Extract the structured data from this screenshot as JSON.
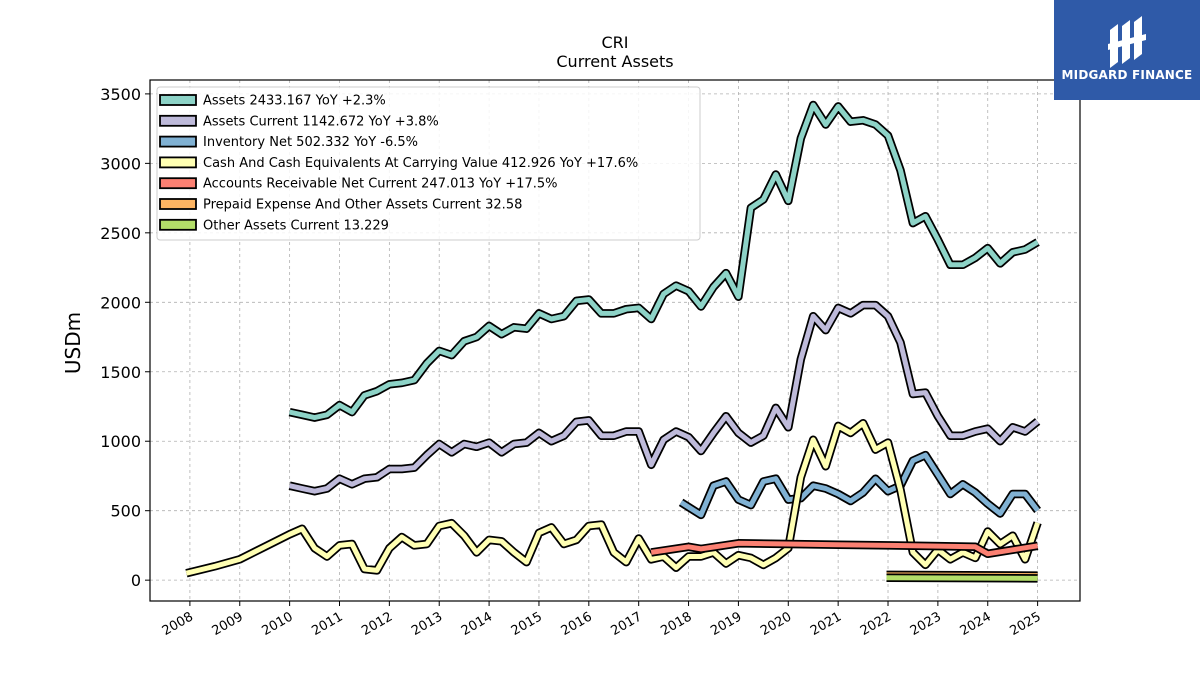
{
  "brand": {
    "name": "MIDGARD FINANCE",
    "color": "#2f5aa8",
    "icon": "midgard-logo-icon"
  },
  "chart_data": {
    "type": "line",
    "title": "CRI",
    "subtitle": "Current  Assets",
    "ylabel": "USDm",
    "xlabel": "",
    "ylim": [
      -150,
      3600
    ],
    "xlim": [
      2007.2,
      2025.85
    ],
    "yticks": [
      0,
      500,
      1000,
      1500,
      2000,
      2500,
      3000,
      3500
    ],
    "xticks": [
      "2008",
      "2009",
      "2010",
      "2011",
      "2012",
      "2013",
      "2014",
      "2015",
      "2016",
      "2017",
      "2018",
      "2019",
      "2020",
      "2021",
      "2022",
      "2023",
      "2024",
      "2025"
    ],
    "grid": true,
    "legend_position": "top-left",
    "series": [
      {
        "name": "Assets  2433.167 YoY +2.3%",
        "color": "#8dd3c7",
        "x": [
          2010.0,
          2010.25,
          2010.5,
          2010.75,
          2011.0,
          2011.25,
          2011.5,
          2011.75,
          2012.0,
          2012.25,
          2012.5,
          2012.75,
          2013.0,
          2013.25,
          2013.5,
          2013.75,
          2014.0,
          2014.25,
          2014.5,
          2014.75,
          2015.0,
          2015.25,
          2015.5,
          2015.75,
          2016.0,
          2016.25,
          2016.5,
          2016.75,
          2017.0,
          2017.25,
          2017.5,
          2017.75,
          2018.0,
          2018.25,
          2018.5,
          2018.75,
          2019.0,
          2019.25,
          2019.5,
          2019.75,
          2020.0,
          2020.25,
          2020.5,
          2020.75,
          2021.0,
          2021.25,
          2021.5,
          2021.75,
          2022.0,
          2022.25,
          2022.5,
          2022.75,
          2023.0,
          2023.25,
          2023.5,
          2023.75,
          2024.0,
          2024.25,
          2024.5,
          2024.75,
          2025.0
        ],
        "values": [
          1210,
          1190,
          1170,
          1190,
          1260,
          1210,
          1330,
          1360,
          1410,
          1420,
          1440,
          1560,
          1650,
          1620,
          1720,
          1750,
          1830,
          1770,
          1820,
          1810,
          1920,
          1880,
          1900,
          2010,
          2020,
          1920,
          1920,
          1950,
          1960,
          1880,
          2060,
          2120,
          2080,
          1970,
          2110,
          2210,
          2040,
          2680,
          2740,
          2920,
          2730,
          3180,
          3420,
          3280,
          3410,
          3300,
          3310,
          3280,
          3200,
          2950,
          2570,
          2620,
          2450,
          2270,
          2270,
          2320,
          2390,
          2280,
          2360,
          2380,
          2433
        ]
      },
      {
        "name": "Assets Current  1142.672 YoY +3.8%",
        "color": "#bebada",
        "x": [
          2010.0,
          2010.25,
          2010.5,
          2010.75,
          2011.0,
          2011.25,
          2011.5,
          2011.75,
          2012.0,
          2012.25,
          2012.5,
          2012.75,
          2013.0,
          2013.25,
          2013.5,
          2013.75,
          2014.0,
          2014.25,
          2014.5,
          2014.75,
          2015.0,
          2015.25,
          2015.5,
          2015.75,
          2016.0,
          2016.25,
          2016.5,
          2016.75,
          2017.0,
          2017.25,
          2017.5,
          2017.75,
          2018.0,
          2018.25,
          2018.5,
          2018.75,
          2019.0,
          2019.25,
          2019.5,
          2019.75,
          2020.0,
          2020.25,
          2020.5,
          2020.75,
          2021.0,
          2021.25,
          2021.5,
          2021.75,
          2022.0,
          2022.25,
          2022.5,
          2022.75,
          2023.0,
          2023.25,
          2023.5,
          2023.75,
          2024.0,
          2024.25,
          2024.5,
          2024.75,
          2025.0
        ],
        "values": [
          680,
          660,
          640,
          660,
          730,
          690,
          730,
          740,
          800,
          800,
          810,
          900,
          980,
          920,
          980,
          960,
          990,
          920,
          980,
          990,
          1060,
          1000,
          1040,
          1140,
          1150,
          1040,
          1040,
          1070,
          1070,
          830,
          1010,
          1070,
          1030,
          930,
          1060,
          1180,
          1060,
          990,
          1040,
          1240,
          1100,
          1590,
          1900,
          1800,
          1960,
          1920,
          1980,
          1980,
          1900,
          1710,
          1340,
          1350,
          1180,
          1040,
          1040,
          1070,
          1090,
          1000,
          1100,
          1070,
          1143
        ]
      },
      {
        "name": "Inventory Net  502.332 YoY -6.5%",
        "color": "#80b1d3",
        "x": [
          2017.85,
          2018.25,
          2018.5,
          2018.75,
          2019.0,
          2019.25,
          2019.5,
          2019.75,
          2020.0,
          2020.25,
          2020.5,
          2020.75,
          2021.0,
          2021.25,
          2021.5,
          2021.75,
          2022.0,
          2022.25,
          2022.5,
          2022.75,
          2023.0,
          2023.25,
          2023.5,
          2023.75,
          2024.0,
          2024.25,
          2024.5,
          2024.75,
          2025.0
        ],
        "values": [
          560,
          470,
          680,
          710,
          580,
          540,
          710,
          730,
          580,
          590,
          680,
          660,
          620,
          570,
          630,
          730,
          640,
          680,
          860,
          900,
          760,
          620,
          690,
          630,
          550,
          480,
          620,
          620,
          502
        ]
      },
      {
        "name": "Cash And Cash Equivalents At Carrying Value  412.926 YoY +17.6%",
        "color": "#ffffb3",
        "x": [
          2007.93,
          2008.5,
          2009.0,
          2009.5,
          2010.0,
          2010.25,
          2010.5,
          2010.75,
          2011.0,
          2011.25,
          2011.5,
          2011.75,
          2012.0,
          2012.25,
          2012.5,
          2012.75,
          2013.0,
          2013.25,
          2013.5,
          2013.75,
          2014.0,
          2014.25,
          2014.5,
          2014.75,
          2015.0,
          2015.25,
          2015.5,
          2015.75,
          2016.0,
          2016.25,
          2016.5,
          2016.75,
          2017.0,
          2017.25,
          2017.5,
          2017.75,
          2018.0,
          2018.25,
          2018.5,
          2018.75,
          2019.0,
          2019.25,
          2019.5,
          2019.75,
          2020.0,
          2020.25,
          2020.5,
          2020.75,
          2021.0,
          2021.25,
          2021.5,
          2021.75,
          2022.0,
          2022.25,
          2022.5,
          2022.75,
          2023.0,
          2023.25,
          2023.5,
          2023.75,
          2024.0,
          2024.25,
          2024.5,
          2024.75,
          2025.0
        ],
        "values": [
          50,
          100,
          150,
          240,
          330,
          370,
          230,
          170,
          250,
          260,
          80,
          70,
          230,
          310,
          250,
          260,
          390,
          410,
          320,
          200,
          290,
          280,
          200,
          130,
          340,
          380,
          260,
          290,
          390,
          400,
          200,
          130,
          300,
          150,
          170,
          90,
          170,
          170,
          200,
          120,
          180,
          160,
          110,
          160,
          230,
          740,
          1010,
          820,
          1110,
          1060,
          1130,
          940,
          990,
          650,
          200,
          110,
          220,
          150,
          200,
          160,
          350,
          260,
          320,
          150,
          413
        ]
      },
      {
        "name": "Accounts Receivable Net Current  247.013 YoY +17.5%",
        "color": "#fb8072",
        "x": [
          2017.25,
          2018.0,
          2018.25,
          2019.0,
          2020.0,
          2021.0,
          2022.0,
          2023.0,
          2023.75,
          2024.0,
          2025.0
        ],
        "values": [
          200,
          240,
          225,
          265,
          260,
          255,
          250,
          245,
          240,
          190,
          247
        ]
      },
      {
        "name": "Prepaid Expense And Other Assets Current  32.58",
        "color": "#fdb462",
        "x": [
          2021.97,
          2025.0
        ],
        "values": [
          38,
          33
        ]
      },
      {
        "name": "Other Assets Current  13.229",
        "color": "#b3de69",
        "x": [
          2021.97,
          2025.0
        ],
        "values": [
          18,
          13
        ]
      }
    ]
  }
}
